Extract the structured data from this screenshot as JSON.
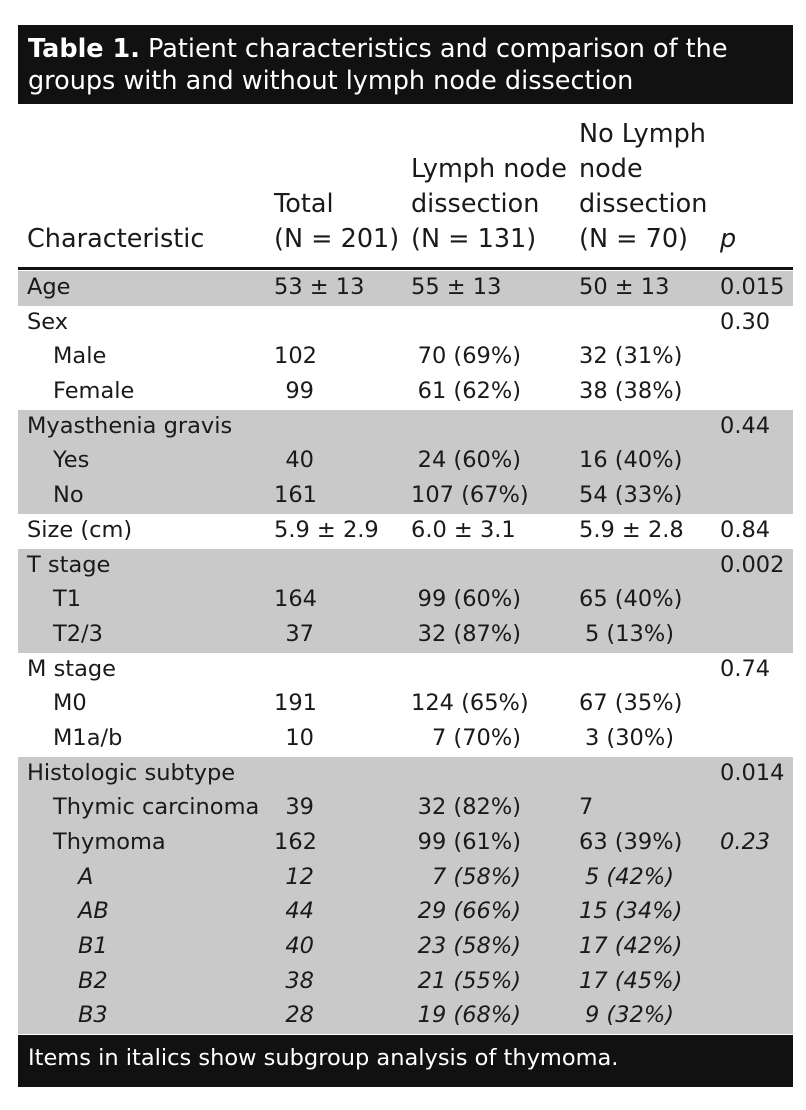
{
  "title": {
    "label": "Table 1.",
    "text": " Patient characteristics and comparison of the groups with and without lymph node dissection"
  },
  "header": {
    "characteristic": "Characteristic",
    "total": [
      "Total",
      "(N = 201)"
    ],
    "ln": [
      "Lymph node",
      "dissection",
      "(N = 131)"
    ],
    "nln": [
      "No Lymph",
      "node",
      "dissection",
      "(N = 70)"
    ],
    "p": "p"
  },
  "rows": [
    {
      "label": "Age",
      "total": "53 ± 13",
      "ln": "55 ± 13",
      "nln": "50 ± 13",
      "p": "0.015"
    },
    {
      "label": "Sex",
      "total": "",
      "ln": "",
      "nln": "",
      "p": "0.30"
    },
    {
      "label": "Male",
      "total": "102",
      "ln": "70 (69%)",
      "nln": "32 (31%)",
      "p": ""
    },
    {
      "label": "Female",
      "total": "99",
      "ln": "61 (62%)",
      "nln": "38 (38%)",
      "p": ""
    },
    {
      "label": "Myasthenia gravis",
      "total": "",
      "ln": "",
      "nln": "",
      "p": "0.44"
    },
    {
      "label": "Yes",
      "total": "40",
      "ln": "24 (60%)",
      "nln": "16 (40%)",
      "p": ""
    },
    {
      "label": "No",
      "total": "161",
      "ln": "107 (67%)",
      "nln": "54 (33%)",
      "p": ""
    },
    {
      "label": "Size (cm)",
      "total": "5.9 ± 2.9",
      "ln": "6.0 ± 3.1",
      "nln": "5.9 ± 2.8",
      "p": "0.84"
    },
    {
      "label": "T stage",
      "total": "",
      "ln": "",
      "nln": "",
      "p": "0.002"
    },
    {
      "label": "T1",
      "total": "164",
      "ln": "99 (60%)",
      "nln": "65 (40%)",
      "p": ""
    },
    {
      "label": "T2/3",
      "total": "37",
      "ln": "32 (87%)",
      "nln": "5 (13%)",
      "p": ""
    },
    {
      "label": "M stage",
      "total": "",
      "ln": "",
      "nln": "",
      "p": "0.74"
    },
    {
      "label": "M0",
      "total": "191",
      "ln": "124 (65%)",
      "nln": "67 (35%)",
      "p": ""
    },
    {
      "label": "M1a/b",
      "total": "10",
      "ln": "7 (70%)",
      "nln": "3 (30%)",
      "p": ""
    },
    {
      "label": "Histologic subtype",
      "total": "",
      "ln": "",
      "nln": "",
      "p": "0.014"
    },
    {
      "label": "Thymic carcinoma",
      "total": "39",
      "ln": "32 (82%)",
      "nln": "7",
      "p": ""
    },
    {
      "label": "Thymoma",
      "total": "162",
      "ln": "99 (61%)",
      "nln": "63 (39%)",
      "p": "0.23"
    },
    {
      "label": "A",
      "total": "12",
      "ln": "7 (58%)",
      "nln": "5 (42%)",
      "p": ""
    },
    {
      "label": "AB",
      "total": "44",
      "ln": "29 (66%)",
      "nln": "15 (34%)",
      "p": ""
    },
    {
      "label": "B1",
      "total": "40",
      "ln": "23 (58%)",
      "nln": "17 (42%)",
      "p": ""
    },
    {
      "label": "B2",
      "total": "38",
      "ln": "21 (55%)",
      "nln": "17 (45%)",
      "p": ""
    },
    {
      "label": "B3",
      "total": "28",
      "ln": "19 (68%)",
      "nln": "9 (32%)",
      "p": ""
    }
  ],
  "footer": "Items in italics show subgroup analysis of thymoma."
}
